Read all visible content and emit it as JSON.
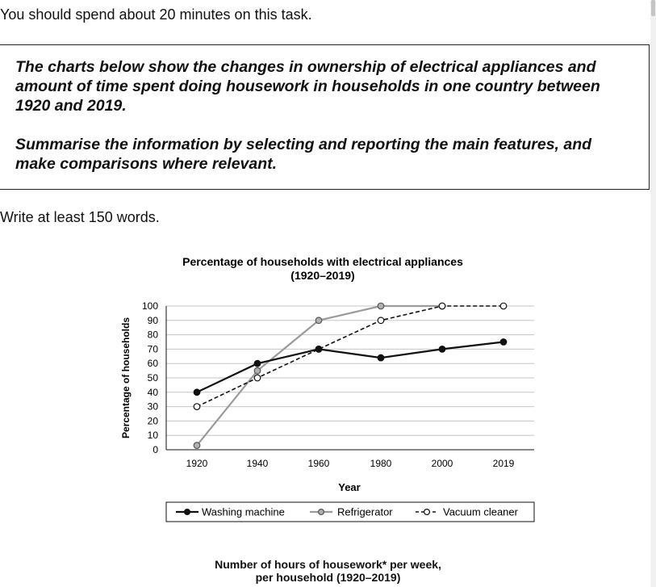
{
  "instruction": "You should spend about 20 minutes on this task.",
  "task": {
    "prompt": "The charts below show the changes in ownership of electrical appliances and amount of time spent doing housework in households in one country between 1920 and 2019.",
    "summary": "Summarise the information by selecting and reporting the main features, and make comparisons where relevant."
  },
  "word_count_note": "Write at least 150 words.",
  "chart_data": [
    {
      "type": "line",
      "title": "Percentage of households with electrical appliances",
      "subtitle": "(1920–2019)",
      "xlabel": "Year",
      "ylabel": "Percentage of households",
      "categories": [
        "1920",
        "1940",
        "1960",
        "1980",
        "2000",
        "2019"
      ],
      "ylim": [
        0,
        100
      ],
      "yticks": [
        0,
        10,
        20,
        30,
        40,
        50,
        60,
        70,
        80,
        90,
        100
      ],
      "grid": true,
      "legend_position": "bottom",
      "series": [
        {
          "name": "Washing machine",
          "values": [
            40,
            60,
            70,
            64,
            70,
            75
          ],
          "color": "#111111",
          "style": "solid",
          "marker": "filled"
        },
        {
          "name": "Refrigerator",
          "values": [
            3,
            55,
            90,
            100,
            100,
            null
          ],
          "color": "#9a9a9a",
          "style": "solid",
          "marker": "grey"
        },
        {
          "name": "Vacuum cleaner",
          "values": [
            30,
            50,
            70,
            90,
            100,
            100
          ],
          "color": "#111111",
          "style": "dashed",
          "marker": "hollow"
        }
      ]
    },
    {
      "type": "bar",
      "title": "Number of hours of housework* per week,",
      "subtitle": "per household (1920–2019)"
    }
  ]
}
